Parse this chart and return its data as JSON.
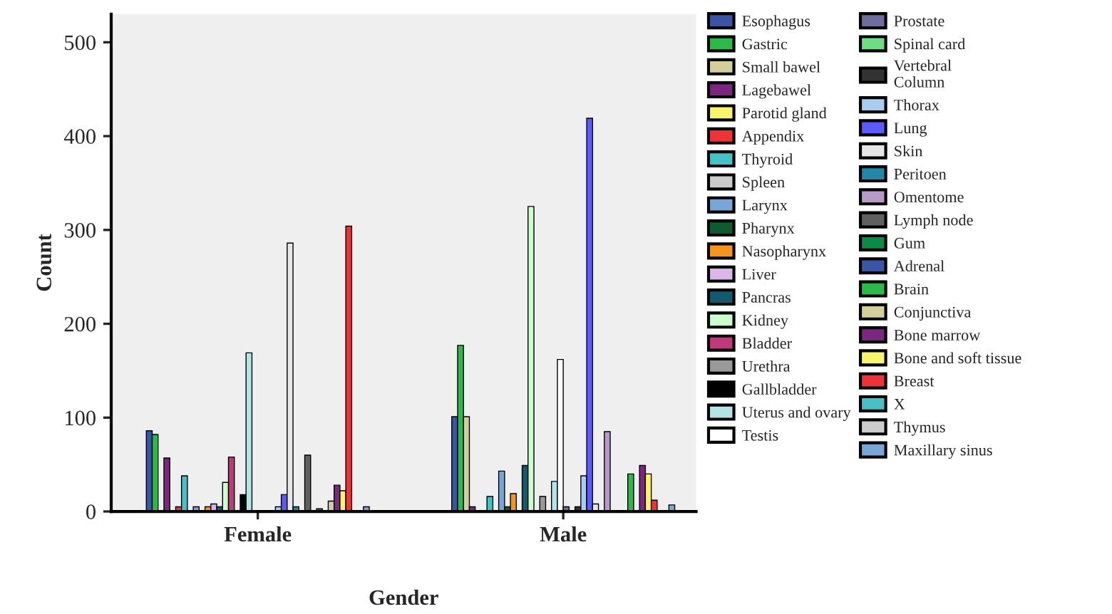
{
  "chart_data": {
    "type": "bar",
    "xlabel": "Gender",
    "ylabel": "Count",
    "categories": [
      "Female",
      "Male"
    ],
    "ylim": [
      0,
      530
    ],
    "yticks": [
      0,
      100,
      200,
      300,
      400,
      500
    ],
    "legend": "right",
    "grid": false,
    "series": [
      {
        "name": "Esophagus",
        "color": "#3a55a4",
        "values": [
          86,
          101
        ]
      },
      {
        "name": "Gastric",
        "color": "#2db84a",
        "values": [
          82,
          177
        ]
      },
      {
        "name": "Small bawel",
        "color": "#d3cf9b",
        "values": [
          null,
          101
        ]
      },
      {
        "name": "Lagebawel",
        "color": "#7b2780",
        "values": [
          57,
          5
        ]
      },
      {
        "name": "Parotid gland",
        "color": "#f8f46c",
        "values": [
          null,
          null
        ]
      },
      {
        "name": "Appendix",
        "color": "#ee3338",
        "values": [
          5,
          null
        ]
      },
      {
        "name": "Thyroid",
        "color": "#47c1c8",
        "values": [
          38,
          16
        ]
      },
      {
        "name": "Spleen",
        "color": "#cccccc",
        "values": [
          null,
          null
        ]
      },
      {
        "name": "Larynx",
        "color": "#7aa6d6",
        "values": [
          5,
          43
        ]
      },
      {
        "name": "Pharynx",
        "color": "#0f5a2e",
        "values": [
          null,
          5
        ]
      },
      {
        "name": "Nasopharynx",
        "color": "#f7941d",
        "values": [
          5,
          19
        ]
      },
      {
        "name": "Liver",
        "color": "#dcb6ea",
        "values": [
          8,
          null
        ]
      },
      {
        "name": "Pancras",
        "color": "#145a6e",
        "values": [
          5,
          49
        ]
      },
      {
        "name": "Kidney",
        "color": "#ccffcc",
        "values": [
          31,
          325
        ]
      },
      {
        "name": "Bladder",
        "color": "#bf3a7a",
        "values": [
          58,
          null
        ]
      },
      {
        "name": "Urethra",
        "color": "#999999",
        "values": [
          null,
          16
        ]
      },
      {
        "name": "Gallbladder",
        "color": "#000000",
        "values": [
          18,
          null
        ]
      },
      {
        "name": "Uterus and ovary",
        "color": "#b3e5e5",
        "values": [
          169,
          32
        ]
      },
      {
        "name": "Testis",
        "color": "#ffffff",
        "values": [
          null,
          162
        ]
      },
      {
        "name": "Prostate",
        "color": "#6e6e9e",
        "values": [
          null,
          5
        ]
      },
      {
        "name": "Spinal card",
        "color": "#6fdc82",
        "values": [
          null,
          null
        ]
      },
      {
        "name": "Vertebral\nColumn",
        "color": "#333333",
        "values": [
          null,
          5
        ]
      },
      {
        "name": "Thorax",
        "color": "#a9cdee",
        "values": [
          5,
          38
        ]
      },
      {
        "name": "Lung",
        "color": "#5a5aff",
        "values": [
          18,
          419
        ]
      },
      {
        "name": "Skin",
        "color": "#e6e6e6",
        "values": [
          286,
          8
        ]
      },
      {
        "name": "Peritoen",
        "color": "#2186a8",
        "values": [
          5,
          null
        ]
      },
      {
        "name": "Omentome",
        "color": "#b89ac8",
        "values": [
          null,
          85
        ]
      },
      {
        "name": "Lymph node",
        "color": "#606060",
        "values": [
          60,
          null
        ]
      },
      {
        "name": "Gum",
        "color": "#0c8a48",
        "values": [
          null,
          null
        ]
      },
      {
        "name": "Adrenal",
        "color": "#3a55a4",
        "values": [
          3,
          null
        ]
      },
      {
        "name": "Brain",
        "color": "#2db84a",
        "values": [
          null,
          40
        ]
      },
      {
        "name": "Conjunctiva",
        "color": "#d3cf9b",
        "values": [
          11,
          null
        ]
      },
      {
        "name": "Bone marrow",
        "color": "#7b2780",
        "values": [
          28,
          49
        ]
      },
      {
        "name": "Bone and soft tissue",
        "color": "#f8f46c",
        "values": [
          22,
          40
        ]
      },
      {
        "name": "Breast",
        "color": "#ee3338",
        "values": [
          304,
          12
        ]
      },
      {
        "name": "X",
        "color": "#47c1c8",
        "values": [
          null,
          null
        ]
      },
      {
        "name": "Thymus",
        "color": "#cccccc",
        "values": [
          null,
          null
        ]
      },
      {
        "name": "Maxillary sinus",
        "color": "#7aa6d6",
        "values": [
          5,
          7
        ]
      }
    ]
  }
}
